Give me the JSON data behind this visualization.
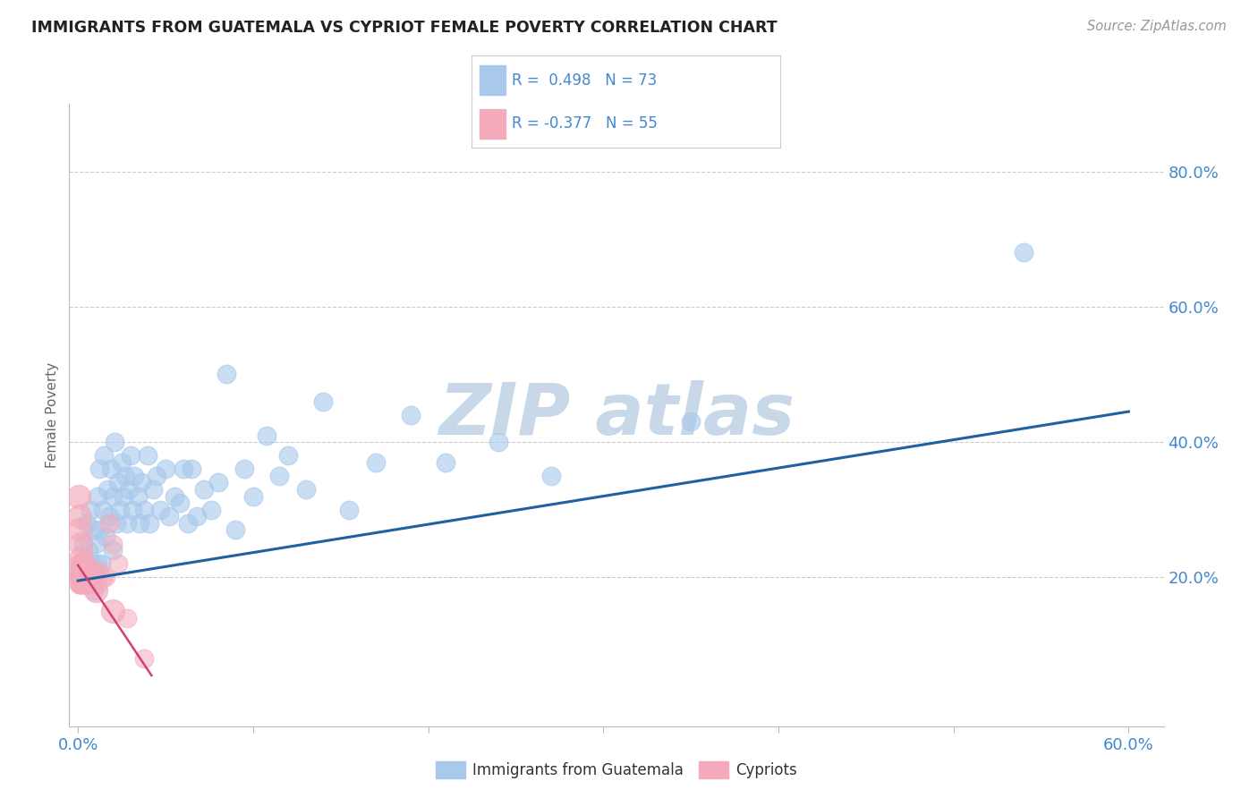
{
  "title": "IMMIGRANTS FROM GUATEMALA VS CYPRIOT FEMALE POVERTY CORRELATION CHART",
  "source": "Source: ZipAtlas.com",
  "ylabel": "Female Poverty",
  "xlim": [
    -0.005,
    0.62
  ],
  "ylim": [
    -0.02,
    0.9
  ],
  "ytick_positions": [
    0.2,
    0.4,
    0.6,
    0.8
  ],
  "ytick_labels": [
    "20.0%",
    "40.0%",
    "60.0%",
    "80.0%"
  ],
  "xtick_positions": [
    0.0,
    0.1,
    0.2,
    0.3,
    0.4,
    0.5,
    0.6
  ],
  "xtick_labels": [
    "0.0%",
    "",
    "",
    "",
    "",
    "",
    "60.0%"
  ],
  "legend_r1": "R =  0.498   N = 73",
  "legend_r2": "R = -0.377   N = 55",
  "legend_x_label": "Immigrants from Guatemala",
  "legend_y_label": "Cypriots",
  "blue_scatter_color": "#A8C8EC",
  "pink_scatter_color": "#F4AABB",
  "blue_line_color": "#2060A0",
  "pink_line_color": "#D04070",
  "title_color": "#222222",
  "tick_label_color": "#4488CC",
  "ylabel_color": "#666666",
  "grid_color": "#CCCCCC",
  "watermark_color": "#C8D8E8",
  "legend_border_color": "#CCCCCC",
  "blue_scatter_x": [
    0.002,
    0.003,
    0.004,
    0.005,
    0.006,
    0.006,
    0.007,
    0.008,
    0.009,
    0.009,
    0.01,
    0.011,
    0.011,
    0.012,
    0.012,
    0.013,
    0.014,
    0.015,
    0.016,
    0.017,
    0.018,
    0.019,
    0.02,
    0.02,
    0.021,
    0.022,
    0.023,
    0.024,
    0.025,
    0.026,
    0.027,
    0.028,
    0.029,
    0.03,
    0.031,
    0.032,
    0.034,
    0.035,
    0.036,
    0.038,
    0.04,
    0.041,
    0.043,
    0.045,
    0.047,
    0.05,
    0.052,
    0.055,
    0.058,
    0.06,
    0.063,
    0.065,
    0.068,
    0.072,
    0.076,
    0.08,
    0.085,
    0.09,
    0.095,
    0.1,
    0.108,
    0.115,
    0.12,
    0.13,
    0.14,
    0.155,
    0.17,
    0.19,
    0.21,
    0.24,
    0.27,
    0.35,
    0.54
  ],
  "blue_scatter_y": [
    0.22,
    0.25,
    0.21,
    0.28,
    0.2,
    0.24,
    0.3,
    0.22,
    0.27,
    0.18,
    0.25,
    0.32,
    0.22,
    0.36,
    0.27,
    0.22,
    0.3,
    0.38,
    0.26,
    0.33,
    0.29,
    0.36,
    0.32,
    0.24,
    0.4,
    0.28,
    0.34,
    0.3,
    0.37,
    0.32,
    0.35,
    0.28,
    0.33,
    0.38,
    0.3,
    0.35,
    0.32,
    0.28,
    0.34,
    0.3,
    0.38,
    0.28,
    0.33,
    0.35,
    0.3,
    0.36,
    0.29,
    0.32,
    0.31,
    0.36,
    0.28,
    0.36,
    0.29,
    0.33,
    0.3,
    0.34,
    0.5,
    0.27,
    0.36,
    0.32,
    0.41,
    0.35,
    0.38,
    0.33,
    0.46,
    0.3,
    0.37,
    0.44,
    0.37,
    0.4,
    0.35,
    0.43,
    0.68
  ],
  "pink_scatter_x": [
    0.0002,
    0.0003,
    0.0004,
    0.0005,
    0.0006,
    0.0007,
    0.0008,
    0.0009,
    0.001,
    0.001,
    0.001,
    0.001,
    0.001,
    0.0015,
    0.0015,
    0.0015,
    0.002,
    0.002,
    0.002,
    0.002,
    0.002,
    0.002,
    0.002,
    0.002,
    0.002,
    0.003,
    0.003,
    0.003,
    0.003,
    0.003,
    0.003,
    0.004,
    0.004,
    0.004,
    0.004,
    0.005,
    0.005,
    0.005,
    0.005,
    0.006,
    0.006,
    0.007,
    0.007,
    0.008,
    0.009,
    0.01,
    0.011,
    0.012,
    0.014,
    0.016,
    0.018,
    0.02,
    0.023,
    0.028,
    0.038
  ],
  "pink_scatter_y": [
    0.2,
    0.21,
    0.2,
    0.19,
    0.22,
    0.2,
    0.21,
    0.2,
    0.19,
    0.21,
    0.2,
    0.22,
    0.2,
    0.2,
    0.21,
    0.19,
    0.2,
    0.21,
    0.2,
    0.19,
    0.2,
    0.21,
    0.2,
    0.19,
    0.21,
    0.2,
    0.21,
    0.2,
    0.19,
    0.21,
    0.2,
    0.2,
    0.19,
    0.21,
    0.2,
    0.2,
    0.19,
    0.21,
    0.2,
    0.2,
    0.19,
    0.21,
    0.2,
    0.19,
    0.21,
    0.2,
    0.19,
    0.21,
    0.2,
    0.2,
    0.28,
    0.25,
    0.22,
    0.14,
    0.08
  ],
  "pink_scatter_large_x": [
    0.0005,
    0.0008,
    0.001,
    0.0015,
    0.002,
    0.003,
    0.004,
    0.005,
    0.01,
    0.02
  ],
  "pink_scatter_large_y": [
    0.32,
    0.29,
    0.27,
    0.25,
    0.23,
    0.22,
    0.21,
    0.2,
    0.18,
    0.15
  ],
  "blue_trend_x": [
    0.0,
    0.6
  ],
  "blue_trend_y": [
    0.195,
    0.445
  ],
  "pink_trend_x": [
    0.0,
    0.042
  ],
  "pink_trend_y": [
    0.218,
    0.055
  ],
  "background_color": "#ffffff"
}
